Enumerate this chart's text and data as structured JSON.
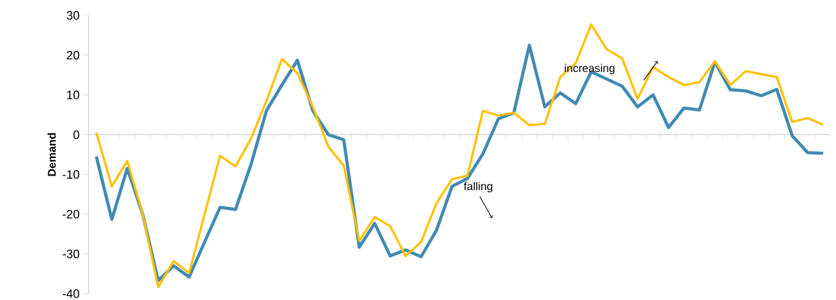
{
  "chart_data": {
    "type": "line",
    "ylabel": "Demand",
    "categories": [
      null,
      null,
      null,
      null,
      null,
      null,
      null,
      null,
      null,
      null,
      null,
      null,
      null,
      null,
      null,
      null,
      null,
      null,
      null,
      null,
      null,
      null,
      null,
      null,
      null,
      null,
      null,
      null,
      null,
      null,
      null,
      null,
      null,
      null,
      null,
      null,
      null,
      null,
      null,
      null,
      null,
      null,
      null,
      null,
      null,
      null,
      null,
      null
    ],
    "series": [
      {
        "color": "#418ab3",
        "values": [
          -5.5,
          -21.3,
          -8.5,
          -20,
          -36.7,
          -33,
          -35.8,
          -27,
          -18.3,
          -18.8,
          -7.5,
          6,
          12.5,
          18.7,
          6,
          0,
          -1.3,
          -28.3,
          -22.3,
          -30.5,
          -29,
          -30.7,
          -24,
          -13,
          -11,
          -4.8,
          4,
          5.5,
          22.5,
          7,
          10.5,
          7.8,
          15.8,
          14,
          12.2,
          7,
          10,
          1.8,
          6.7,
          6.2,
          18.3,
          11.3,
          11,
          9.8,
          11.4,
          -0.3,
          -4.5,
          -4.7
        ]
      },
      {
        "color": "#ffc000",
        "values": [
          0.5,
          -13,
          -6.6,
          -20,
          -38.3,
          -31.8,
          -34.8,
          -20,
          -5.3,
          -8,
          -1,
          8.5,
          19,
          15.5,
          7,
          -3,
          -7.8,
          -26.7,
          -20.7,
          -23,
          -30.5,
          -27,
          -17.2,
          -11.2,
          -10.3,
          6,
          4.8,
          5.5,
          2.4,
          2.7,
          14.5,
          18,
          27.7,
          21.5,
          19.2,
          9,
          17,
          14.5,
          12.5,
          13.2,
          18.5,
          12.5,
          16,
          15.2,
          14.5,
          3.2,
          4.2,
          2.5
        ]
      }
    ],
    "ylim": [
      -40,
      30
    ],
    "yticks": [
      -40,
      -30,
      -20,
      -10,
      0,
      10,
      20,
      30
    ],
    "annotations": [
      "falling",
      "increasing"
    ]
  }
}
